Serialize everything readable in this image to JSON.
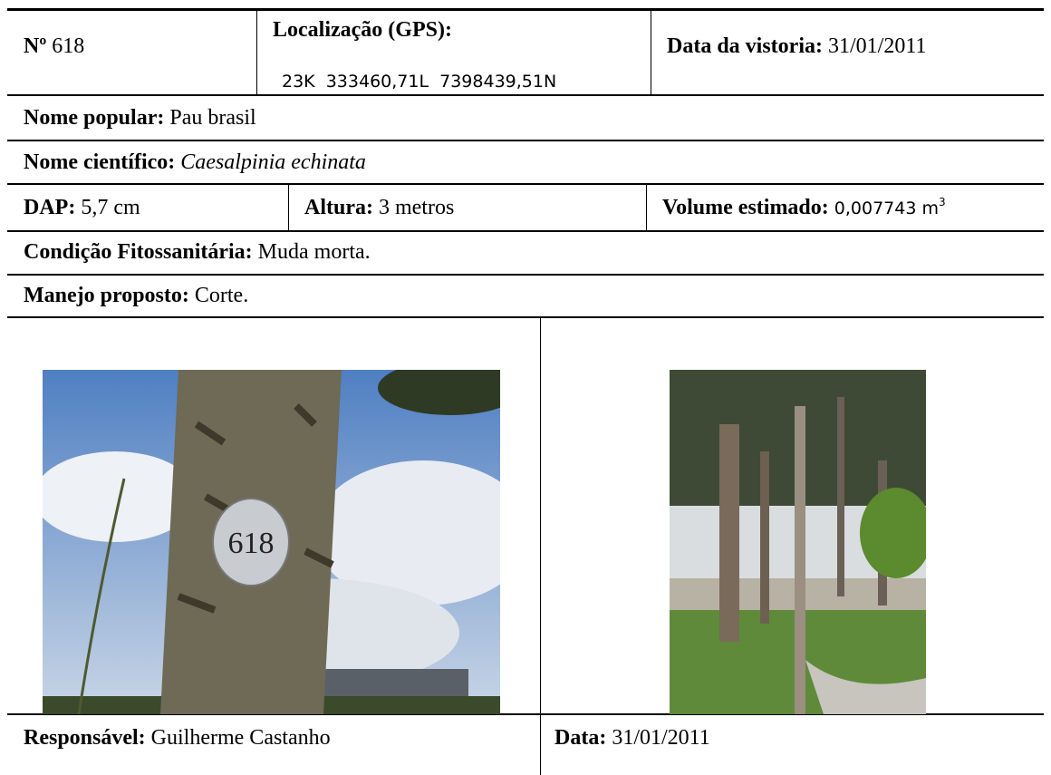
{
  "record": {
    "number": {
      "label": "Nº",
      "value": "618"
    },
    "gps": {
      "label": "Localização (GPS):",
      "value": "23K  333460,71L  7398439,51N"
    },
    "inspection_date": {
      "label": "Data da vistoria:",
      "value": "31/01/2011"
    },
    "common_name": {
      "label": "Nome popular:",
      "value": "Pau brasil"
    },
    "scientific_name": {
      "label": "Nome científico:",
      "value": "Caesalpinia echinata"
    },
    "dap": {
      "label": "DAP:",
      "value": "5,7 cm"
    },
    "height": {
      "label": "Altura:",
      "value": "3 metros"
    },
    "volume": {
      "label": "Volume estimado:",
      "value": "0,007743 m",
      "exponent": "3"
    },
    "condition": {
      "label": "Condição Fitossanitária:",
      "value": "Muda morta."
    },
    "management": {
      "label": "Manejo proposto:",
      "value": "Corte."
    },
    "photos": [
      {
        "tag": "618"
      }
    ],
    "responsible": {
      "label": "Responsável:",
      "value": "Guilherme Castanho"
    },
    "date": {
      "label": "Data:",
      "value": "31/01/2011"
    }
  }
}
